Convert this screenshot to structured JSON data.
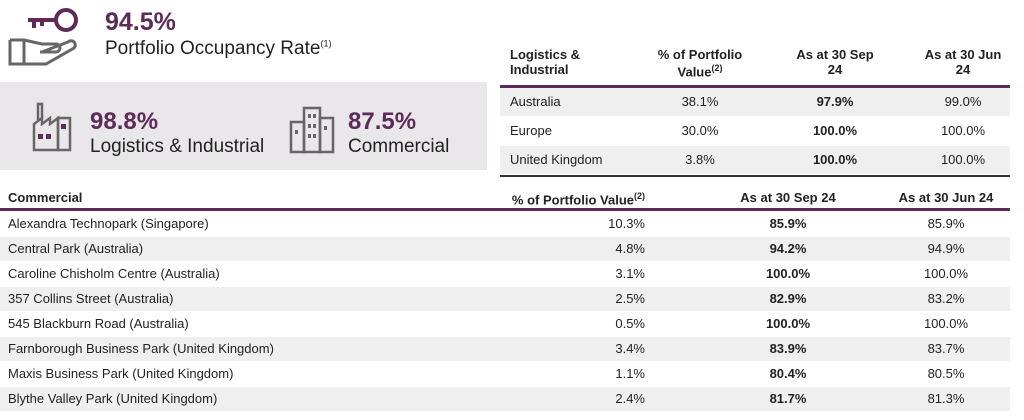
{
  "headline": {
    "value": "94.5%",
    "label": "Portfolio Occupancy Rate",
    "note": "(1)"
  },
  "segments": [
    {
      "value": "98.8%",
      "label": "Logistics & Industrial"
    },
    {
      "value": "87.5%",
      "label": "Commercial"
    }
  ],
  "logistics_table": {
    "header": [
      {
        "text": "Logistics & Industrial"
      },
      {
        "text": "% of Portfolio Value",
        "note": "(2)"
      },
      {
        "text": "As at 30 Sep 24"
      },
      {
        "text": "As at 30 Jun 24"
      }
    ],
    "rows": [
      [
        "Australia",
        "38.1%",
        "97.9%",
        "99.0%"
      ],
      [
        "Europe",
        "30.0%",
        "100.0%",
        "100.0%"
      ],
      [
        "United Kingdom",
        "3.8%",
        "100.0%",
        "100.0%"
      ]
    ]
  },
  "commercial_table": {
    "header": [
      {
        "text": "Commercial"
      },
      {
        "text": "% of Portfolio Value",
        "note": "(2)"
      },
      {
        "text": "As at 30 Sep 24"
      },
      {
        "text": "As at 30 Jun 24"
      }
    ],
    "rows": [
      [
        "Alexandra Technopark (Singapore)",
        "10.3%",
        "85.9%",
        "85.9%"
      ],
      [
        "Central Park (Australia)",
        "4.8%",
        "94.2%",
        "94.9%"
      ],
      [
        "Caroline Chisholm Centre (Australia)",
        "3.1%",
        "100.0%",
        "100.0%"
      ],
      [
        "357 Collins Street (Australia)",
        "2.5%",
        "82.9%",
        "83.2%"
      ],
      [
        "545 Blackburn Road (Australia)",
        "0.5%",
        "100.0%",
        "100.0%"
      ],
      [
        "Farnborough Business Park (United Kingdom)",
        "3.4%",
        "83.9%",
        "83.7%"
      ],
      [
        "Maxis Business Park (United Kingdom)",
        "1.1%",
        "80.4%",
        "80.5%"
      ],
      [
        "Blythe Valley Park (United Kingdom)",
        "2.4%",
        "81.7%",
        "81.3%"
      ]
    ]
  }
}
